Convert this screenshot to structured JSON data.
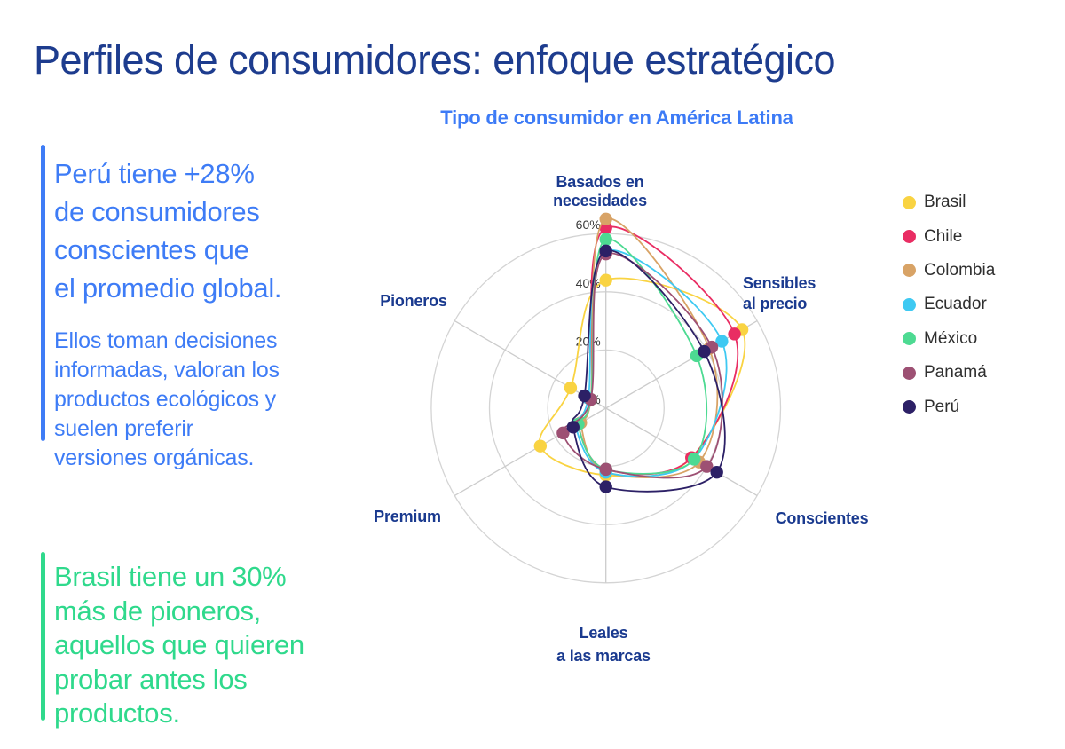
{
  "page": {
    "title": "Perfiles de consumidores: enfoque estratégico"
  },
  "insights": [
    {
      "accent_color": "#3E7CF6",
      "highlight": "Perú tiene +28%\nde consumidores\nconscientes que\nel promedio global.",
      "detail": "Ellos toman decisiones\ninformadas, valoran los\nproductos ecológicos y\nsuelen preferir\nversiones orgánicas."
    },
    {
      "accent_color": "#2FD98C",
      "highlight": "Brasil tiene un 30%\nmás de pioneros,\naquellos que quieren\nprobar antes los\nproductos.",
      "detail": ""
    }
  ],
  "chart_data": {
    "type": "radar",
    "title": "Tipo de consumidor en América Latina",
    "title_color": "#3D7BF6",
    "axes": [
      "Basados en\nnecesidades",
      "Sensibles\nal precio",
      "Conscientes",
      "Leales\na las marcas",
      "Premium",
      "Pioneros"
    ],
    "ticks": [
      "0%",
      "20%",
      "40%",
      "60%"
    ],
    "tick_values": [
      0,
      20,
      40,
      60
    ],
    "max": 60,
    "unit": "%",
    "grid_color": "#d4d4d4",
    "legend_position": "right",
    "series": [
      {
        "name": "Brasil",
        "color": "#F9D342",
        "values": [
          44,
          54,
          34,
          23,
          26,
          14
        ]
      },
      {
        "name": "Chile",
        "color": "#E92D63",
        "values": [
          62,
          51,
          34,
          21,
          11,
          6
        ]
      },
      {
        "name": "Colombia",
        "color": "#D8A366",
        "values": [
          65,
          41,
          37,
          22,
          10,
          6
        ]
      },
      {
        "name": "Ecuador",
        "color": "#3EC9F2",
        "values": [
          54,
          46,
          35,
          22,
          12,
          7
        ]
      },
      {
        "name": "México",
        "color": "#4DDA92",
        "values": [
          58,
          36,
          35,
          21,
          11,
          6
        ]
      },
      {
        "name": "Panamá",
        "color": "#9D5073",
        "values": [
          53,
          42,
          40,
          21,
          17,
          6
        ]
      },
      {
        "name": "Perú",
        "color": "#2C2066",
        "values": [
          54,
          39,
          44,
          27,
          13,
          8.5
        ]
      }
    ]
  }
}
